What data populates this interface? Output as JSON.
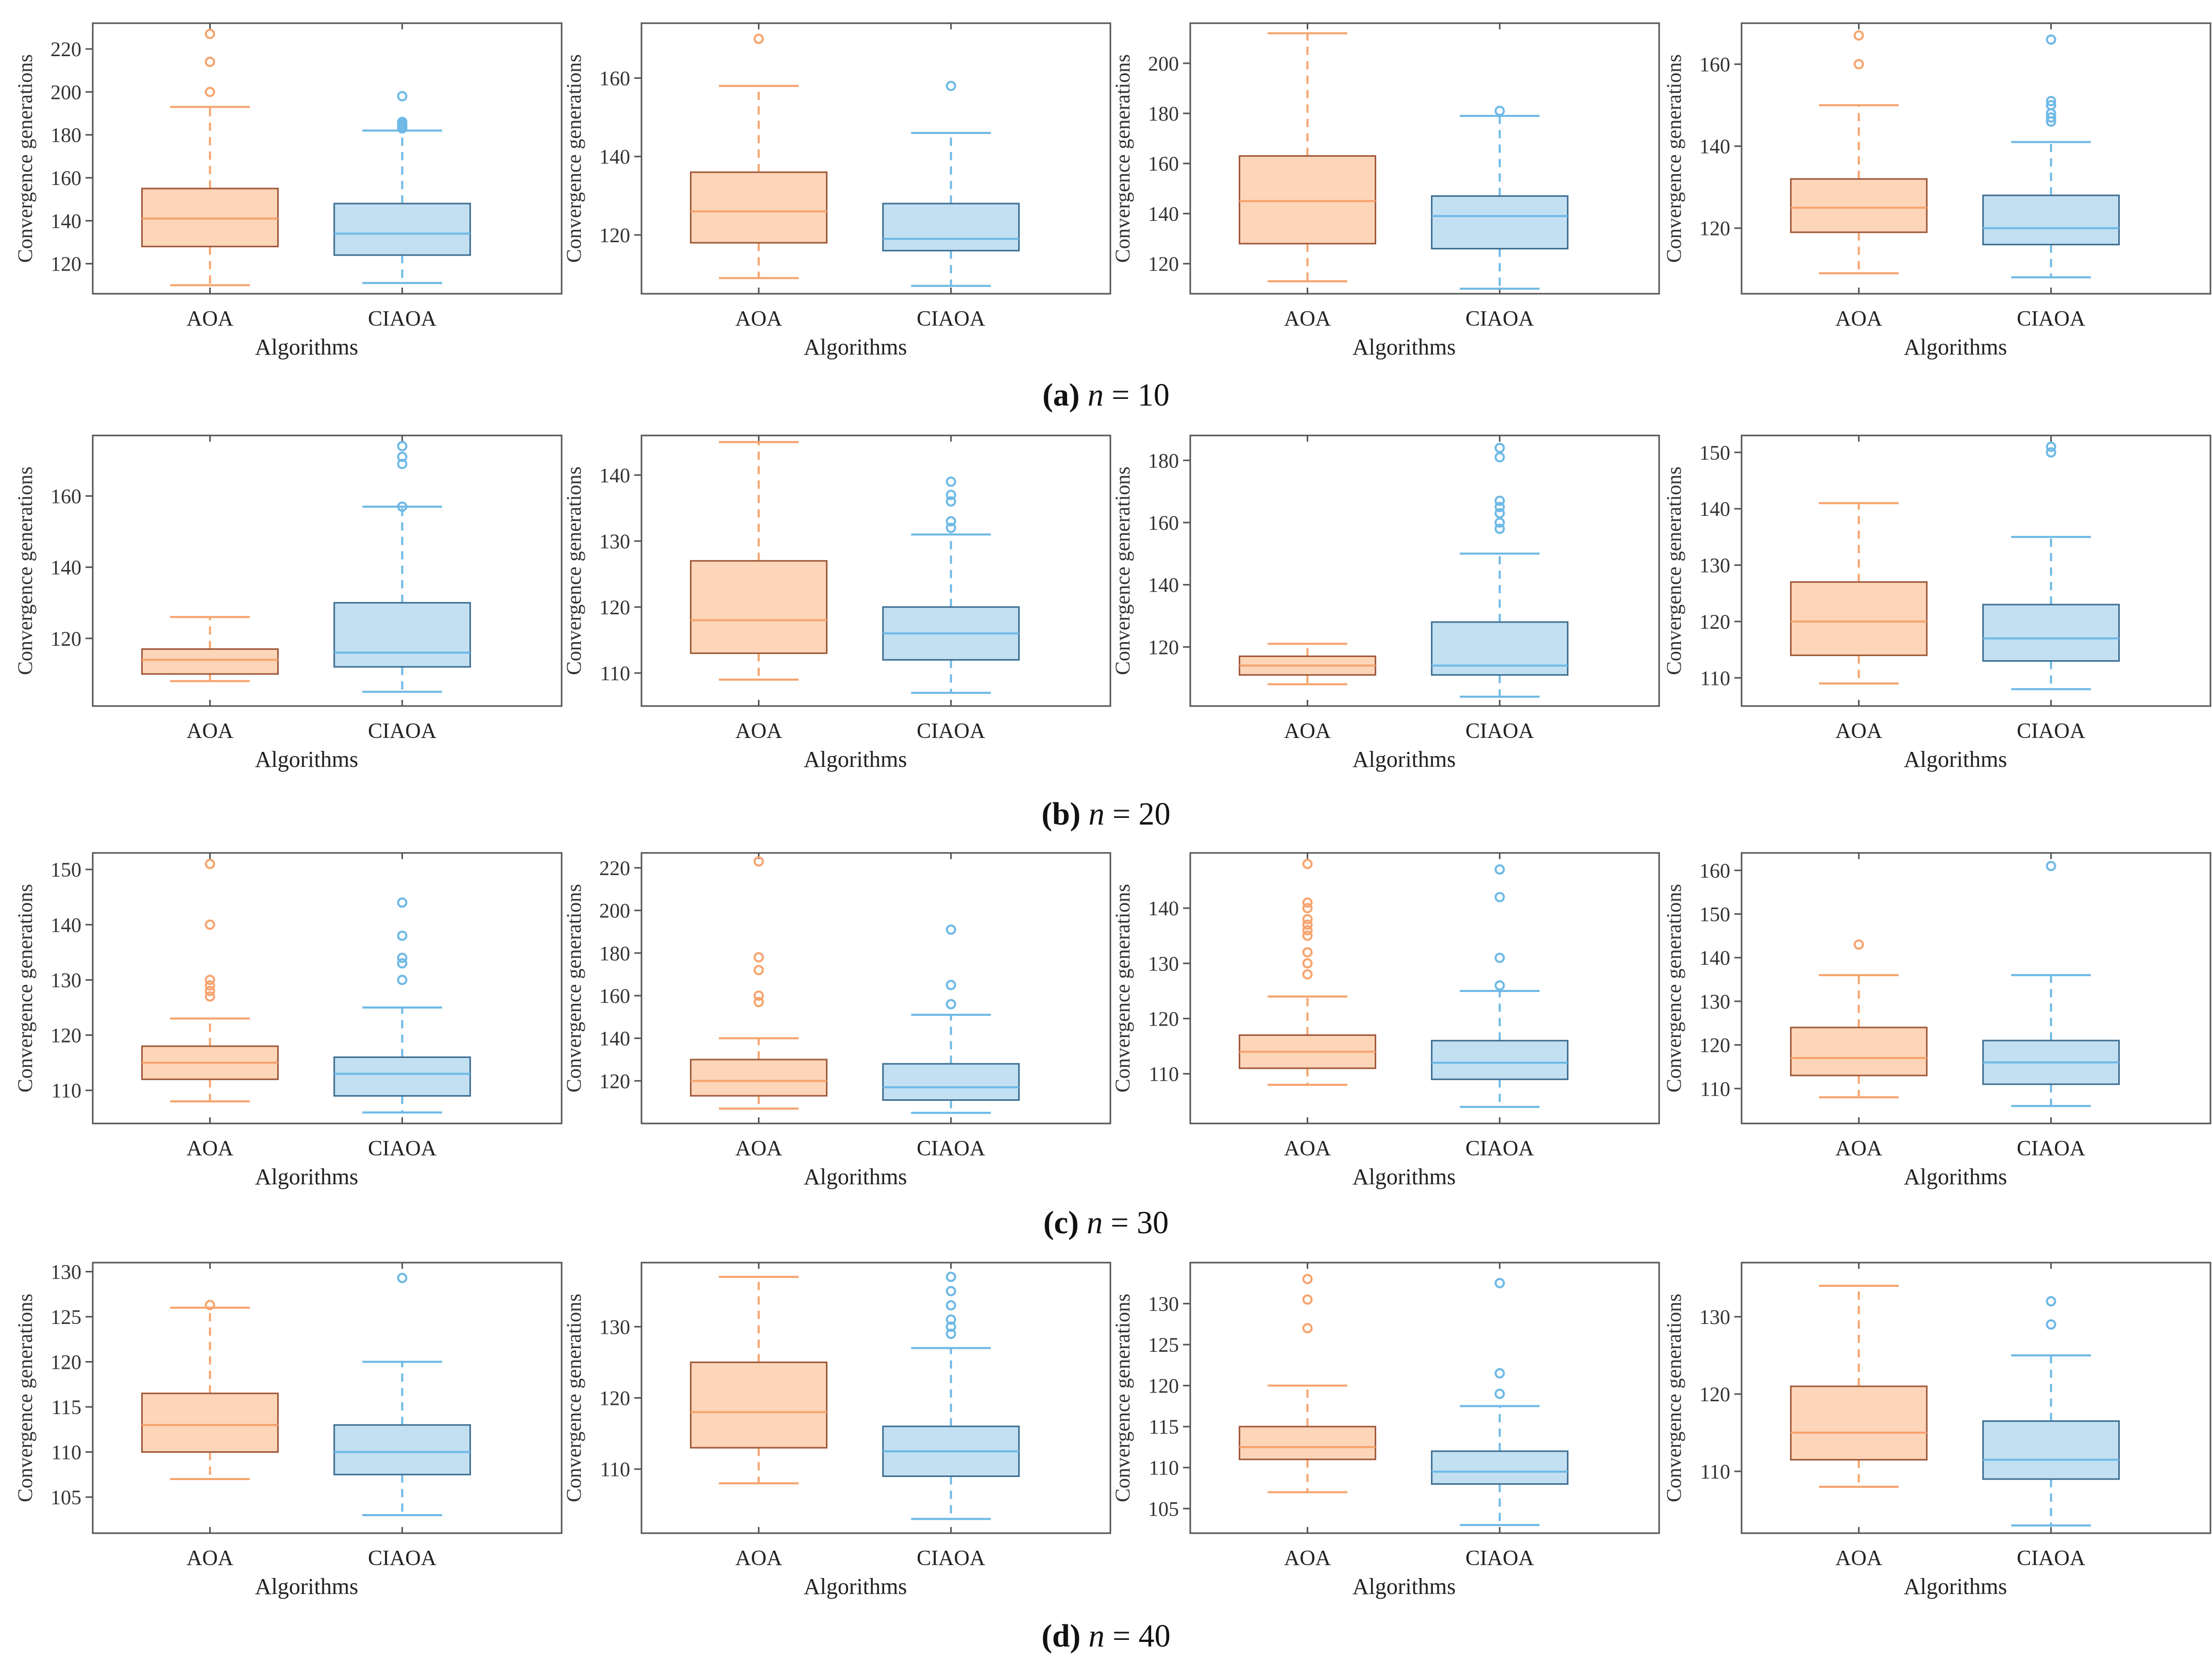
{
  "colors": {
    "aoa_fill": "#fdd5b9",
    "aoa_edge": "#a0593a",
    "aoa_whisker": "#f6a46e",
    "ciaoa_fill": "#c3e0f3",
    "ciaoa_edge": "#3e6f92",
    "ciaoa_whisker": "#6eb9e6",
    "axis": "#555555"
  },
  "rows": [
    {
      "label": "(a)",
      "var": "n",
      "eq": "= 10"
    },
    {
      "label": "(b)",
      "var": "n",
      "eq": "= 20"
    },
    {
      "label": "(c)",
      "var": "n",
      "eq": "= 30"
    },
    {
      "label": "(d)",
      "var": "n",
      "eq": "= 40"
    }
  ],
  "chart_data": [
    {
      "type": "box",
      "row": 0,
      "col": 0,
      "xlabel": "Algorithms",
      "ylabel": "Convergence generations",
      "categories": [
        "AOA",
        "CIAOA"
      ],
      "ylim": [
        106,
        232
      ],
      "yticks": [
        120,
        140,
        160,
        180,
        200,
        220
      ],
      "boxes": [
        {
          "name": "AOA",
          "whislo": 110,
          "q1": 128,
          "med": 141,
          "q3": 155,
          "whishi": 193,
          "fliers": [
            200,
            214,
            227
          ]
        },
        {
          "name": "CIAOA",
          "whislo": 111,
          "q1": 124,
          "med": 134,
          "q3": 148,
          "whishi": 182,
          "fliers": [
            183,
            184,
            185,
            186,
            198
          ]
        }
      ]
    },
    {
      "type": "box",
      "row": 0,
      "col": 1,
      "xlabel": "Algorithms",
      "ylabel": "Convergence generations",
      "categories": [
        "AOA",
        "CIAOA"
      ],
      "ylim": [
        105,
        174
      ],
      "yticks": [
        120,
        140,
        160
      ],
      "boxes": [
        {
          "name": "AOA",
          "whislo": 109,
          "q1": 118,
          "med": 126,
          "q3": 136,
          "whishi": 158,
          "fliers": [
            170
          ]
        },
        {
          "name": "CIAOA",
          "whislo": 107,
          "q1": 116,
          "med": 119,
          "q3": 128,
          "whishi": 146,
          "fliers": [
            158
          ]
        }
      ]
    },
    {
      "type": "box",
      "row": 0,
      "col": 2,
      "xlabel": "Algorithms",
      "ylabel": "Convergence generations",
      "categories": [
        "AOA",
        "CIAOA"
      ],
      "ylim": [
        108,
        216
      ],
      "yticks": [
        120,
        140,
        160,
        180,
        200
      ],
      "boxes": [
        {
          "name": "AOA",
          "whislo": 113,
          "q1": 128,
          "med": 145,
          "q3": 163,
          "whishi": 212,
          "fliers": []
        },
        {
          "name": "CIAOA",
          "whislo": 110,
          "q1": 126,
          "med": 139,
          "q3": 147,
          "whishi": 179,
          "fliers": [
            181
          ]
        }
      ]
    },
    {
      "type": "box",
      "row": 0,
      "col": 3,
      "xlabel": "Algorithms",
      "ylabel": "Convergence generations",
      "categories": [
        "AOA",
        "CIAOA"
      ],
      "ylim": [
        104,
        170
      ],
      "yticks": [
        120,
        140,
        160
      ],
      "boxes": [
        {
          "name": "AOA",
          "whislo": 109,
          "q1": 119,
          "med": 125,
          "q3": 132,
          "whishi": 150,
          "fliers": [
            160,
            167
          ]
        },
        {
          "name": "CIAOA",
          "whislo": 108,
          "q1": 116,
          "med": 120,
          "q3": 128,
          "whishi": 141,
          "fliers": [
            146,
            147,
            148,
            150,
            151,
            166
          ]
        }
      ]
    },
    {
      "type": "box",
      "row": 1,
      "col": 0,
      "xlabel": "Algorithms",
      "ylabel": "Convergence generations",
      "categories": [
        "AOA",
        "CIAOA"
      ],
      "ylim": [
        101,
        177
      ],
      "yticks": [
        120,
        140,
        160
      ],
      "boxes": [
        {
          "name": "AOA",
          "whislo": 108,
          "q1": 110,
          "med": 114,
          "q3": 117,
          "whishi": 126,
          "fliers": []
        },
        {
          "name": "CIAOA",
          "whislo": 105,
          "q1": 112,
          "med": 116,
          "q3": 130,
          "whishi": 157,
          "fliers": [
            157,
            169,
            171,
            174
          ]
        }
      ]
    },
    {
      "type": "box",
      "row": 1,
      "col": 1,
      "xlabel": "Algorithms",
      "ylabel": "Convergence generations",
      "categories": [
        "AOA",
        "CIAOA"
      ],
      "ylim": [
        105,
        146
      ],
      "yticks": [
        110,
        120,
        130,
        140
      ],
      "boxes": [
        {
          "name": "AOA",
          "whislo": 109,
          "q1": 113,
          "med": 118,
          "q3": 127,
          "whishi": 145,
          "fliers": []
        },
        {
          "name": "CIAOA",
          "whislo": 107,
          "q1": 112,
          "med": 116,
          "q3": 120,
          "whishi": 131,
          "fliers": [
            132,
            133,
            136,
            137,
            139
          ]
        }
      ]
    },
    {
      "type": "box",
      "row": 1,
      "col": 2,
      "xlabel": "Algorithms",
      "ylabel": "Convergence generations",
      "categories": [
        "AOA",
        "CIAOA"
      ],
      "ylim": [
        101,
        188
      ],
      "yticks": [
        120,
        140,
        160,
        180
      ],
      "boxes": [
        {
          "name": "AOA",
          "whislo": 108,
          "q1": 111,
          "med": 114,
          "q3": 117,
          "whishi": 121,
          "fliers": []
        },
        {
          "name": "CIAOA",
          "whislo": 104,
          "q1": 111,
          "med": 114,
          "q3": 128,
          "whishi": 150,
          "fliers": [
            158,
            160,
            163,
            165,
            167,
            181,
            184
          ]
        }
      ]
    },
    {
      "type": "box",
      "row": 1,
      "col": 3,
      "xlabel": "Algorithms",
      "ylabel": "Convergence generations",
      "categories": [
        "AOA",
        "CIAOA"
      ],
      "ylim": [
        105,
        153
      ],
      "yticks": [
        110,
        120,
        130,
        140,
        150
      ],
      "boxes": [
        {
          "name": "AOA",
          "whislo": 109,
          "q1": 114,
          "med": 120,
          "q3": 127,
          "whishi": 141,
          "fliers": []
        },
        {
          "name": "CIAOA",
          "whislo": 108,
          "q1": 113,
          "med": 117,
          "q3": 123,
          "whishi": 135,
          "fliers": [
            150,
            151
          ]
        }
      ]
    },
    {
      "type": "box",
      "row": 2,
      "col": 0,
      "xlabel": "Algorithms",
      "ylabel": "Convergence generations",
      "categories": [
        "AOA",
        "CIAOA"
      ],
      "ylim": [
        104,
        153
      ],
      "yticks": [
        110,
        120,
        130,
        140,
        150
      ],
      "boxes": [
        {
          "name": "AOA",
          "whislo": 108,
          "q1": 112,
          "med": 115,
          "q3": 118,
          "whishi": 123,
          "fliers": [
            127,
            128,
            129,
            130,
            140,
            151
          ]
        },
        {
          "name": "CIAOA",
          "whislo": 106,
          "q1": 109,
          "med": 113,
          "q3": 116,
          "whishi": 125,
          "fliers": [
            130,
            133,
            134,
            138,
            144
          ]
        }
      ]
    },
    {
      "type": "box",
      "row": 2,
      "col": 1,
      "xlabel": "Algorithms",
      "ylabel": "Convergence generations",
      "categories": [
        "AOA",
        "CIAOA"
      ],
      "ylim": [
        100,
        227
      ],
      "yticks": [
        120,
        140,
        160,
        180,
        200,
        220
      ],
      "boxes": [
        {
          "name": "AOA",
          "whislo": 107,
          "q1": 113,
          "med": 120,
          "q3": 130,
          "whishi": 140,
          "fliers": [
            157,
            160,
            172,
            178,
            223
          ]
        },
        {
          "name": "CIAOA",
          "whislo": 105,
          "q1": 111,
          "med": 117,
          "q3": 128,
          "whishi": 151,
          "fliers": [
            156,
            165,
            191
          ]
        }
      ]
    },
    {
      "type": "box",
      "row": 2,
      "col": 2,
      "xlabel": "Algorithms",
      "ylabel": "Convergence generations",
      "categories": [
        "AOA",
        "CIAOA"
      ],
      "ylim": [
        101,
        150
      ],
      "yticks": [
        110,
        120,
        130,
        140
      ],
      "boxes": [
        {
          "name": "AOA",
          "whislo": 108,
          "q1": 111,
          "med": 114,
          "q3": 117,
          "whishi": 124,
          "fliers": [
            128,
            130,
            132,
            135,
            136,
            137,
            138,
            140,
            141,
            148
          ]
        },
        {
          "name": "CIAOA",
          "whislo": 104,
          "q1": 109,
          "med": 112,
          "q3": 116,
          "whishi": 125,
          "fliers": [
            126,
            131,
            142,
            147
          ]
        }
      ]
    },
    {
      "type": "box",
      "row": 2,
      "col": 3,
      "xlabel": "Algorithms",
      "ylabel": "Convergence generations",
      "categories": [
        "AOA",
        "CIAOA"
      ],
      "ylim": [
        102,
        164
      ],
      "yticks": [
        110,
        120,
        130,
        140,
        150,
        160
      ],
      "boxes": [
        {
          "name": "AOA",
          "whislo": 108,
          "q1": 113,
          "med": 117,
          "q3": 124,
          "whishi": 136,
          "fliers": [
            143
          ]
        },
        {
          "name": "CIAOA",
          "whislo": 106,
          "q1": 111,
          "med": 116,
          "q3": 121,
          "whishi": 136,
          "fliers": [
            161
          ]
        }
      ]
    },
    {
      "type": "box",
      "row": 3,
      "col": 0,
      "xlabel": "Algorithms",
      "ylabel": "Convergence generations",
      "categories": [
        "AOA",
        "CIAOA"
      ],
      "ylim": [
        101,
        131
      ],
      "yticks": [
        105,
        110,
        115,
        120,
        125,
        130
      ],
      "boxes": [
        {
          "name": "AOA",
          "whislo": 107,
          "q1": 110,
          "med": 113,
          "q3": 116.5,
          "whishi": 126,
          "fliers": [
            126.3
          ]
        },
        {
          "name": "CIAOA",
          "whislo": 103,
          "q1": 107.5,
          "med": 110,
          "q3": 113,
          "whishi": 120,
          "fliers": [
            129.3
          ]
        }
      ]
    },
    {
      "type": "box",
      "row": 3,
      "col": 1,
      "xlabel": "Algorithms",
      "ylabel": "Convergence generations",
      "categories": [
        "AOA",
        "CIAOA"
      ],
      "ylim": [
        101,
        139
      ],
      "yticks": [
        110,
        120,
        130
      ],
      "boxes": [
        {
          "name": "AOA",
          "whislo": 108,
          "q1": 113,
          "med": 118,
          "q3": 125,
          "whishi": 137,
          "fliers": []
        },
        {
          "name": "CIAOA",
          "whislo": 103,
          "q1": 109,
          "med": 112.5,
          "q3": 116,
          "whishi": 127,
          "fliers": [
            129,
            130,
            131,
            133,
            135,
            137
          ]
        }
      ]
    },
    {
      "type": "box",
      "row": 3,
      "col": 2,
      "xlabel": "Algorithms",
      "ylabel": "Convergence generations",
      "categories": [
        "AOA",
        "CIAOA"
      ],
      "ylim": [
        102,
        135
      ],
      "yticks": [
        105,
        110,
        115,
        120,
        125,
        130
      ],
      "boxes": [
        {
          "name": "AOA",
          "whislo": 107,
          "q1": 111,
          "med": 112.5,
          "q3": 115,
          "whishi": 120,
          "fliers": [
            127,
            130.5,
            133
          ]
        },
        {
          "name": "CIAOA",
          "whislo": 103,
          "q1": 108,
          "med": 109.5,
          "q3": 112,
          "whishi": 117.5,
          "fliers": [
            119,
            121.5,
            132.5
          ]
        }
      ]
    },
    {
      "type": "box",
      "row": 3,
      "col": 3,
      "xlabel": "Algorithms",
      "ylabel": "Convergence generations",
      "categories": [
        "AOA",
        "CIAOA"
      ],
      "ylim": [
        102,
        137
      ],
      "yticks": [
        110,
        120,
        130
      ],
      "boxes": [
        {
          "name": "AOA",
          "whislo": 108,
          "q1": 111.5,
          "med": 115,
          "q3": 121,
          "whishi": 134,
          "fliers": []
        },
        {
          "name": "CIAOA",
          "whislo": 103,
          "q1": 109,
          "med": 111.5,
          "q3": 116.5,
          "whishi": 125,
          "fliers": [
            129,
            132
          ]
        }
      ]
    }
  ]
}
